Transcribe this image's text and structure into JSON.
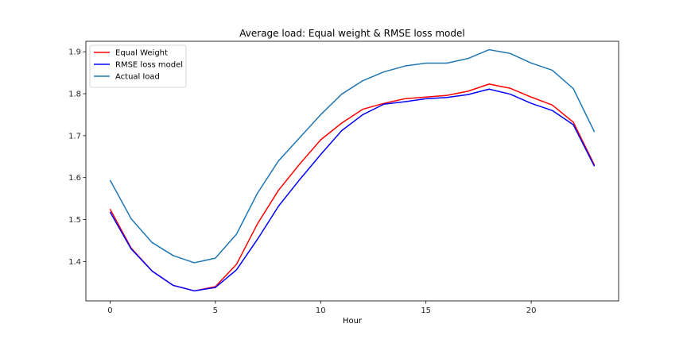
{
  "chart_data": {
    "type": "line",
    "title": "Average load: Equal weight & RMSE loss model",
    "xlabel": "Hour",
    "ylabel": "",
    "x": [
      0,
      1,
      2,
      3,
      4,
      5,
      6,
      7,
      8,
      9,
      10,
      11,
      12,
      13,
      14,
      15,
      16,
      17,
      18,
      19,
      20,
      21,
      22,
      23
    ],
    "xlim": [
      -1.15,
      24.15
    ],
    "ylim": [
      1.306,
      1.925
    ],
    "xticks": [
      0,
      5,
      10,
      15,
      20
    ],
    "yticks": [
      1.4,
      1.5,
      1.6,
      1.7,
      1.8,
      1.9
    ],
    "grid": false,
    "legend_position": "upper-left",
    "series": [
      {
        "name": "Equal Weight",
        "color": "#ff0000",
        "values": [
          1.525,
          1.432,
          1.377,
          1.343,
          1.33,
          1.34,
          1.393,
          1.49,
          1.57,
          1.632,
          1.69,
          1.73,
          1.763,
          1.777,
          1.788,
          1.792,
          1.796,
          1.806,
          1.823,
          1.813,
          1.792,
          1.773,
          1.732,
          1.63
        ]
      },
      {
        "name": "RMSE loss model",
        "color": "#0000ff",
        "values": [
          1.518,
          1.43,
          1.377,
          1.343,
          1.33,
          1.338,
          1.38,
          1.453,
          1.532,
          1.595,
          1.655,
          1.712,
          1.75,
          1.775,
          1.781,
          1.788,
          1.791,
          1.798,
          1.811,
          1.799,
          1.777,
          1.76,
          1.726,
          1.627
        ]
      },
      {
        "name": "Actual load",
        "color": "#1f77b4",
        "values": [
          1.594,
          1.502,
          1.445,
          1.414,
          1.397,
          1.408,
          1.465,
          1.563,
          1.64,
          1.695,
          1.75,
          1.799,
          1.831,
          1.852,
          1.866,
          1.873,
          1.873,
          1.884,
          1.905,
          1.896,
          1.873,
          1.856,
          1.812,
          1.709
        ]
      }
    ]
  }
}
